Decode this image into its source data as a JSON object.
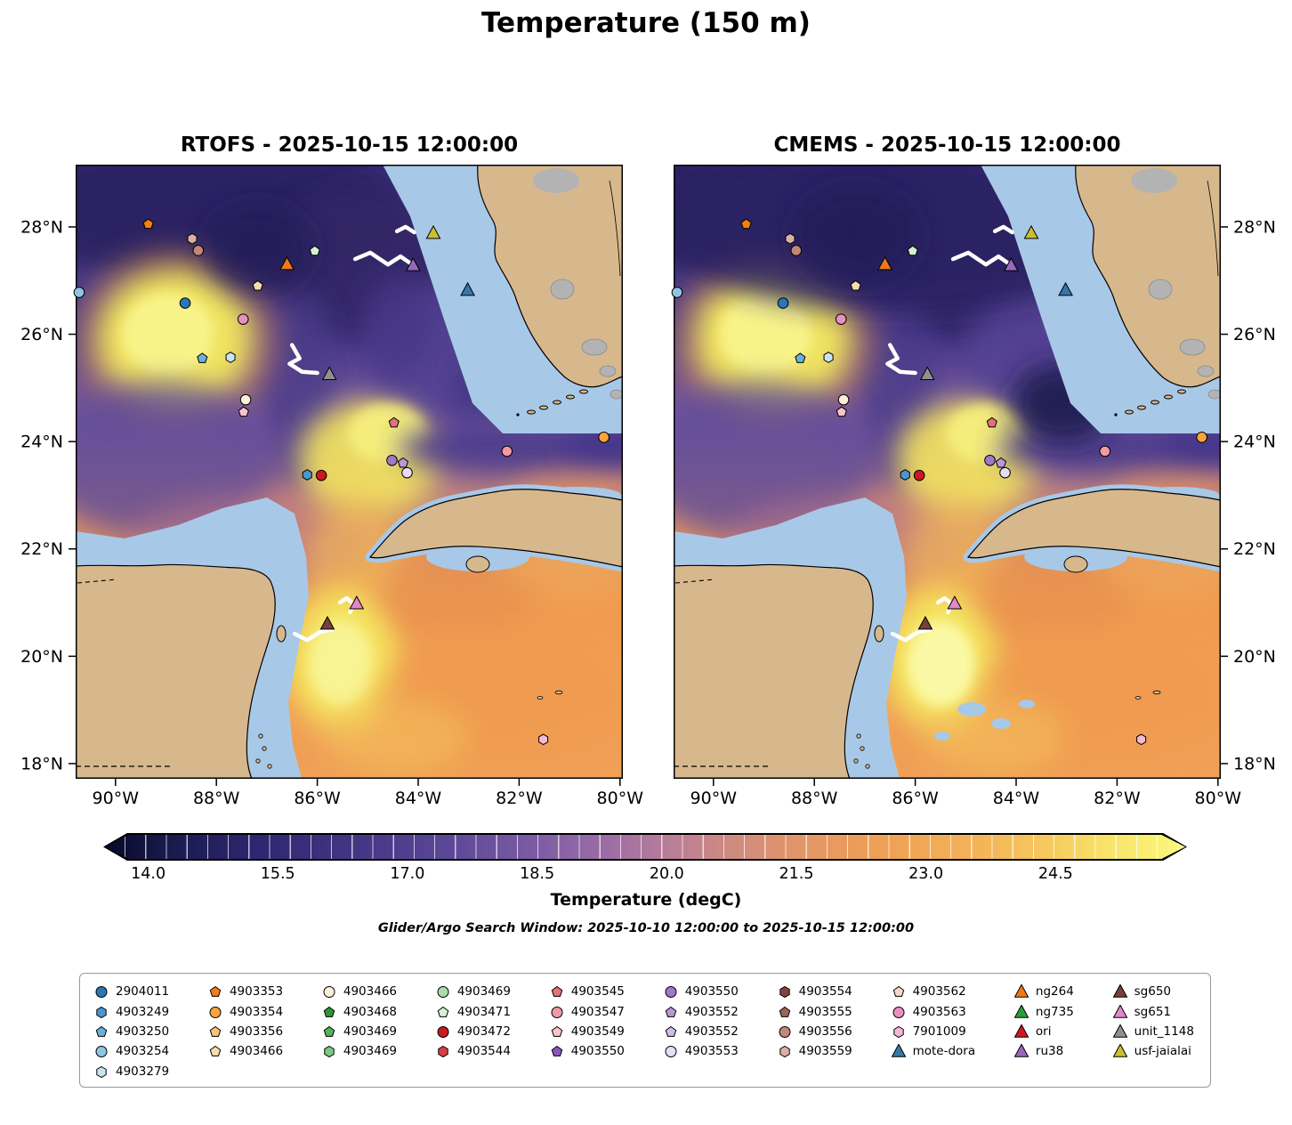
{
  "figure": {
    "title": "Temperature (150 m)",
    "subtitle": "Glider/Argo Search Window: 2025-10-10 12:00:00 to 2025-10-15 12:00:00"
  },
  "panels": [
    {
      "id": "rtofs",
      "title": "RTOFS - 2025-10-15 12:00:00"
    },
    {
      "id": "cmems",
      "title": "CMEMS - 2025-10-15 12:00:00"
    }
  ],
  "axes": {
    "lat_labels": [
      "28°N",
      "26°N",
      "24°N",
      "22°N",
      "20°N",
      "18°N"
    ],
    "lat_values": [
      28,
      26,
      24,
      22,
      20,
      18
    ],
    "lon_labels": [
      "90°W",
      "88°W",
      "86°W",
      "84°W",
      "82°W",
      "80°W"
    ],
    "lon_values": [
      -90,
      -88,
      -86,
      -84,
      -82,
      -80
    ]
  },
  "colorbar": {
    "label": "Temperature (degC)",
    "tick_labels": [
      "14.0",
      "15.5",
      "17.0",
      "18.5",
      "20.0",
      "21.5",
      "23.0",
      "24.5"
    ],
    "tick_values": [
      14.0,
      15.5,
      17.0,
      18.5,
      20.0,
      21.5,
      23.0,
      24.5
    ],
    "range": [
      13.5,
      26.0
    ],
    "gradient": [
      [
        "0%",
        "#08082a"
      ],
      [
        "6%",
        "#1a1a4e"
      ],
      [
        "14%",
        "#2e2670"
      ],
      [
        "24%",
        "#463786"
      ],
      [
        "32%",
        "#5c4898"
      ],
      [
        "40%",
        "#7e5ca4"
      ],
      [
        "46%",
        "#9a6ca6"
      ],
      [
        "52%",
        "#b87d9a"
      ],
      [
        "58%",
        "#cf8a80"
      ],
      [
        "64%",
        "#e29568"
      ],
      [
        "72%",
        "#efa055"
      ],
      [
        "80%",
        "#f3b158"
      ],
      [
        "87%",
        "#f6c85e"
      ],
      [
        "93%",
        "#f8e468"
      ],
      [
        "100%",
        "#fbf87e"
      ]
    ]
  },
  "legend": {
    "column_counts": [
      5,
      4,
      4,
      4,
      4,
      4,
      4,
      4,
      4,
      4
    ],
    "entries": [
      {
        "label": "2904011",
        "shape": "circle",
        "color": "#2878b8"
      },
      {
        "label": "4903249",
        "shape": "hexagon",
        "color": "#4898cc"
      },
      {
        "label": "4903250",
        "shape": "pentagon",
        "color": "#68b0dc"
      },
      {
        "label": "4903254",
        "shape": "circle",
        "color": "#90c4e4"
      },
      {
        "label": "4903279",
        "shape": "hexagon",
        "color": "#c8e4f0"
      },
      {
        "label": "4903353",
        "shape": "pentagon",
        "color": "#f08010"
      },
      {
        "label": "4903354",
        "shape": "circle",
        "color": "#fca338"
      },
      {
        "label": "4903356",
        "shape": "pentagon",
        "color": "#fcc27c"
      },
      {
        "label": "4903466",
        "shape": "pentagon",
        "color": "#f8dcae"
      },
      {
        "label": "4903466",
        "shape": "circle",
        "color": "#faeed8"
      },
      {
        "label": "4903468",
        "shape": "pentagon",
        "color": "#2e9438"
      },
      {
        "label": "4903469",
        "shape": "pentagon",
        "color": "#52b45c"
      },
      {
        "label": "4903469",
        "shape": "hexagon",
        "color": "#7cc884"
      },
      {
        "label": "4903469",
        "shape": "circle",
        "color": "#a8dcac"
      },
      {
        "label": "4903471",
        "shape": "pentagon",
        "color": "#d4f0d4"
      },
      {
        "label": "4903472",
        "shape": "circle",
        "color": "#c81820"
      },
      {
        "label": "4903544",
        "shape": "hexagon",
        "color": "#d84048"
      },
      {
        "label": "4903545",
        "shape": "pentagon",
        "color": "#e4707a"
      },
      {
        "label": "4903547",
        "shape": "circle",
        "color": "#f09aa4"
      },
      {
        "label": "4903549",
        "shape": "pentagon",
        "color": "#fac4cc"
      },
      {
        "label": "4903550",
        "shape": "pentagon",
        "color": "#8858b8"
      },
      {
        "label": "4903550",
        "shape": "circle",
        "color": "#a078c8"
      },
      {
        "label": "4903552",
        "shape": "pentagon",
        "color": "#b898d8"
      },
      {
        "label": "4903552",
        "shape": "pentagon",
        "color": "#d0bce6"
      },
      {
        "label": "4903553",
        "shape": "circle",
        "color": "#e8dcf4"
      },
      {
        "label": "4903554",
        "shape": "hexagon",
        "color": "#80443c"
      },
      {
        "label": "4903555",
        "shape": "pentagon",
        "color": "#a06458"
      },
      {
        "label": "4903556",
        "shape": "circle",
        "color": "#c08878"
      },
      {
        "label": "4903559",
        "shape": "hexagon",
        "color": "#dcb0a4"
      },
      {
        "label": "4903562",
        "shape": "pentagon",
        "color": "#f4d8cc"
      },
      {
        "label": "4903563",
        "shape": "circle",
        "color": "#e890c0"
      },
      {
        "label": "7901009",
        "shape": "hexagon",
        "color": "#f4b8d4"
      },
      {
        "label": "mote-dora",
        "shape": "triangle",
        "color": "#3478a8"
      },
      {
        "label": "ng264",
        "shape": "triangle",
        "color": "#f07818"
      },
      {
        "label": "ng735",
        "shape": "triangle",
        "color": "#28a038"
      },
      {
        "label": "ori",
        "shape": "triangle",
        "color": "#d01820"
      },
      {
        "label": "ru38",
        "shape": "triangle",
        "color": "#9868c0"
      },
      {
        "label": "sg650",
        "shape": "triangle",
        "color": "#784038"
      },
      {
        "label": "sg651",
        "shape": "triangle",
        "color": "#e088c8"
      },
      {
        "label": "unit_1148",
        "shape": "triangle",
        "color": "#909090"
      },
      {
        "label": "usf-jaialai",
        "shape": "triangle",
        "color": "#c8c030"
      }
    ]
  },
  "chart_data": {
    "type": "heatmap",
    "title": "Temperature (150 m)",
    "variable": "sea water temperature",
    "units": "degC",
    "depth_m": 150,
    "valid_time": "2025-10-15 12:00:00",
    "models": [
      "RTOFS",
      "CMEMS"
    ],
    "search_window": [
      "2025-10-10 12:00:00",
      "2025-10-15 12:00:00"
    ],
    "lon_range_degE": [
      -90.79,
      -79.95
    ],
    "lat_range_degN": [
      17.72,
      29.16
    ],
    "temperature_range_degC": [
      13.5,
      26.0
    ],
    "colorbar_ticks_degC": [
      14.0,
      15.5,
      17.0,
      18.5,
      20.0,
      21.5,
      23.0,
      24.5
    ],
    "platforms": [
      {
        "label": "4903353",
        "shape": "pentagon",
        "color": "#f08010",
        "lon": -89.35,
        "lat": 28.05
      },
      {
        "label": "4903559",
        "shape": "hexagon",
        "color": "#dcb0a4",
        "lon": -88.48,
        "lat": 27.78
      },
      {
        "label": "4903556",
        "shape": "circle",
        "color": "#c08878",
        "lon": -88.36,
        "lat": 27.56
      },
      {
        "label": "ng264",
        "shape": "triangle",
        "color": "#f07818",
        "lon": -86.6,
        "lat": 27.3
      },
      {
        "label": "4903471",
        "shape": "pentagon",
        "color": "#d4f0d4",
        "lon": -86.05,
        "lat": 27.55
      },
      {
        "label": "4903466",
        "shape": "pentagon",
        "color": "#f8dcae",
        "lon": -87.18,
        "lat": 26.9
      },
      {
        "label": "usf-jaialai",
        "shape": "triangle",
        "color": "#c8c030",
        "lon": -83.7,
        "lat": 27.88
      },
      {
        "label": "ru38",
        "shape": "triangle",
        "color": "#9868c0",
        "lon": -84.1,
        "lat": 27.28
      },
      {
        "label": "mote-dora",
        "shape": "triangle",
        "color": "#3478a8",
        "lon": -83.02,
        "lat": 26.82
      },
      {
        "label": "2904011",
        "shape": "circle",
        "color": "#2878b8",
        "lon": -88.62,
        "lat": 26.58
      },
      {
        "label": "4903254",
        "shape": "circle",
        "color": "#90c4e4",
        "lon": -90.72,
        "lat": 26.78
      },
      {
        "label": "4903563",
        "shape": "circle",
        "color": "#e890c0",
        "lon": -87.47,
        "lat": 26.28
      },
      {
        "label": "4903250",
        "shape": "pentagon",
        "color": "#68b0dc",
        "lon": -88.28,
        "lat": 25.55
      },
      {
        "label": "4903279",
        "shape": "hexagon",
        "color": "#c8e4f0",
        "lon": -87.72,
        "lat": 25.57
      },
      {
        "label": "unit_1148",
        "shape": "triangle",
        "color": "#909090",
        "lon": -85.76,
        "lat": 25.25
      },
      {
        "label": "4903466",
        "shape": "circle",
        "color": "#faeed8",
        "lon": -87.42,
        "lat": 24.78
      },
      {
        "label": "4903549",
        "shape": "pentagon",
        "color": "#fac4cc",
        "lon": -87.46,
        "lat": 24.55
      },
      {
        "label": "4903545",
        "shape": "pentagon",
        "color": "#e4707a",
        "lon": -84.48,
        "lat": 24.35
      },
      {
        "label": "4903354",
        "shape": "circle",
        "color": "#fca338",
        "lon": -80.32,
        "lat": 24.08
      },
      {
        "label": "4903550",
        "shape": "circle",
        "color": "#a078c8",
        "lon": -84.52,
        "lat": 23.65
      },
      {
        "label": "4903552",
        "shape": "pentagon",
        "color": "#b898d8",
        "lon": -84.3,
        "lat": 23.6
      },
      {
        "label": "4903553",
        "shape": "circle",
        "color": "#e8dcf4",
        "lon": -84.22,
        "lat": 23.42
      },
      {
        "label": "4903547",
        "shape": "circle",
        "color": "#f09aa4",
        "lon": -82.24,
        "lat": 23.82
      },
      {
        "label": "4903249",
        "shape": "hexagon",
        "color": "#4898cc",
        "lon": -86.2,
        "lat": 23.38
      },
      {
        "label": "4903472",
        "shape": "circle",
        "color": "#c81820",
        "lon": -85.92,
        "lat": 23.37
      },
      {
        "label": "sg651",
        "shape": "triangle",
        "color": "#e088c8",
        "lon": -85.22,
        "lat": 20.98
      },
      {
        "label": "sg650",
        "shape": "triangle",
        "color": "#784038",
        "lon": -85.8,
        "lat": 20.6
      },
      {
        "label": "7901009",
        "shape": "hexagon",
        "color": "#f4b8d4",
        "lon": -81.52,
        "lat": 18.45
      }
    ],
    "tracks": [
      {
        "name": "ru38-track",
        "color": "#ffffff",
        "points": [
          [
            -85.25,
            27.4
          ],
          [
            -84.95,
            27.52
          ],
          [
            -84.6,
            27.3
          ],
          [
            -84.35,
            27.45
          ],
          [
            -84.12,
            27.3
          ]
        ]
      },
      {
        "name": "usf-jaialai-track",
        "color": "#ffffff",
        "points": [
          [
            -84.42,
            27.92
          ],
          [
            -84.25,
            28.0
          ],
          [
            -84.08,
            27.9
          ]
        ]
      },
      {
        "name": "unit_1148-track",
        "color": "#ffffff",
        "points": [
          [
            -86.5,
            25.8
          ],
          [
            -86.35,
            25.55
          ],
          [
            -86.55,
            25.45
          ],
          [
            -86.3,
            25.3
          ],
          [
            -86.0,
            25.28
          ]
        ]
      },
      {
        "name": "sg650-track",
        "color": "#ffffff",
        "points": [
          [
            -86.45,
            20.42
          ],
          [
            -86.2,
            20.3
          ],
          [
            -85.95,
            20.45
          ],
          [
            -85.7,
            20.5
          ],
          [
            -85.78,
            20.62
          ]
        ]
      },
      {
        "name": "sg651-track",
        "color": "#ffffff",
        "points": [
          [
            -85.55,
            21.0
          ],
          [
            -85.42,
            21.08
          ],
          [
            -85.28,
            20.98
          ],
          [
            -85.35,
            20.82
          ]
        ]
      }
    ]
  }
}
